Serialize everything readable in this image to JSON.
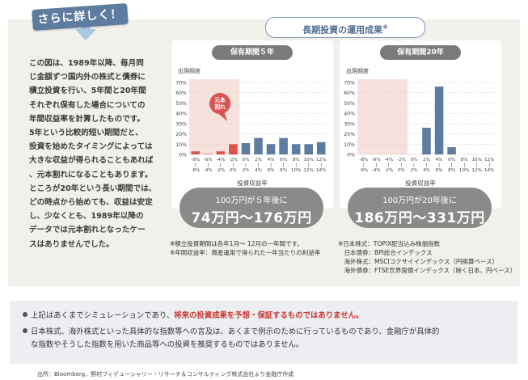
{
  "banner": {
    "label": "さらに詳しく！"
  },
  "intro": {
    "lines": [
      "この図は、1989年以降、毎月同",
      "じ金額ずつ国内外の株式と債券に",
      "積立投資を行い、5年間と20年間",
      "それぞれ保有した場合についての",
      "年間収益率を計算したものです。",
      "5年という比較的短い期間だと、",
      "投資を始めたタイミングによっては",
      "大きな収益が得られることもあれば",
      "、元本割れになることもあります。",
      "ところが20年という長い期間では、",
      "どの時点から始めても、収益は安定",
      "し、少なくとも、1989年以降の",
      "データでは元本割れとなったケー",
      "スはありませんでした。"
    ]
  },
  "results_title": {
    "text": "長期投資の運用成果",
    "mark": "※"
  },
  "colors": {
    "loss": "#d9534f",
    "gain": "#5e7c9f",
    "loss_zone": "#f7e1dd",
    "pill": "#8a8a8a"
  },
  "chart_data": [
    {
      "type": "bar",
      "title": "保有期間５年",
      "ylabel": "出現頻度",
      "xlabel": "投資収益率",
      "y_ticks": [
        "0%",
        "10%",
        "20%",
        "30%",
        "40%",
        "50%",
        "60%",
        "70%"
      ],
      "ylim": [
        0,
        70
      ],
      "categories": [
        [
          "-8%",
          "|",
          "-6%"
        ],
        [
          "-6%",
          "|",
          "-4%"
        ],
        [
          "-4%",
          "|",
          "-2%"
        ],
        [
          "-2%",
          "|",
          "0%"
        ],
        [
          "0%",
          "|",
          "2%"
        ],
        [
          "2%",
          "|",
          "4%"
        ],
        [
          "4%",
          "|",
          "6%"
        ],
        [
          "6%",
          "|",
          "8%"
        ],
        [
          "8%",
          "|",
          "10%"
        ],
        [
          "10%",
          "|",
          "12%"
        ],
        [
          "12%",
          "|",
          "14%"
        ]
      ],
      "values": [
        3,
        0.5,
        3,
        10,
        11,
        16,
        10,
        16,
        10,
        10,
        12
      ],
      "loss_count": 4,
      "callout": [
        "元本",
        "割れ"
      ]
    },
    {
      "type": "bar",
      "title": "保有期間20年",
      "ylabel": "出現頻度",
      "xlabel": "投資収益率",
      "y_ticks": [
        "0%",
        "10%",
        "20%",
        "30%",
        "40%",
        "50%",
        "60%",
        "70%"
      ],
      "ylim": [
        0,
        70
      ],
      "categories": [
        [
          "-8%",
          "|",
          "-6%"
        ],
        [
          "-6%",
          "|",
          "-4%"
        ],
        [
          "-4%",
          "|",
          "-2%"
        ],
        [
          "-2%",
          "|",
          "0%"
        ],
        [
          "0%",
          "|",
          "2%"
        ],
        [
          "2%",
          "|",
          "4%"
        ],
        [
          "4%",
          "|",
          "6%"
        ],
        [
          "6%",
          "|",
          "8%"
        ],
        [
          "8%",
          "|",
          "10%"
        ],
        [
          "10%",
          "|",
          "12%"
        ],
        [
          "12%",
          "|",
          "14%"
        ]
      ],
      "values": [
        0,
        0,
        0,
        0,
        0,
        26,
        66,
        7,
        0,
        0,
        0
      ],
      "loss_count": 4
    }
  ],
  "pills": [
    {
      "line1": "100万円が５年後に",
      "line2": "74万円〜176万円"
    },
    {
      "line1": "100万円が20年後に",
      "line2": "186万円〜331万円"
    }
  ],
  "notes_left": [
    "※積立投資期間は各年1月～ 12月の一年間です。",
    "※年間収益率：資産運用で得られた一年当たりの利益率"
  ],
  "notes_right": [
    "※日本株式：TOPIX配当込み株価指数",
    "　日本債券：BPI総合インデックス",
    "　海外株式：MSCIコクサイインデックス（円換算ベース）",
    "　海外債券：FTSE世界国債インデックス（除く日本、円ベース）"
  ],
  "disclaimer": {
    "line1_pre": "上記はあくまでシミュレーションであり、",
    "line1_red": "将来の投資成果を予想・保証するものではありません。",
    "line2": "日本株式、海外株式といった具体的な指数等への言及は、あくまで例示のために行っているものであり、金融庁が具体的",
    "line3": "な指数やそうした指数を用いた商品等への投資を推奨するものではありません。"
  },
  "source": "出所：Bloomberg，野村フィデューシャリー・リサーチ＆コンサルティング株式会社より金融庁作成"
}
